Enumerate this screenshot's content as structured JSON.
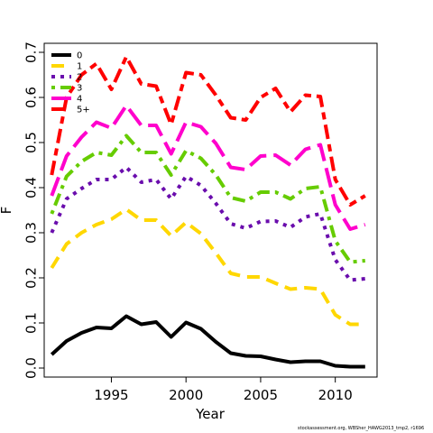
{
  "chart_data": {
    "type": "line",
    "title": "",
    "xlabel": "Year",
    "ylabel": "F",
    "xlim": [
      1990.5,
      2012.8
    ],
    "ylim": [
      -0.02,
      0.72
    ],
    "xticks": [
      1995,
      2000,
      2005,
      2010
    ],
    "yticks": [
      0.0,
      0.1,
      0.2,
      0.3,
      0.4,
      0.5,
      0.6,
      0.7
    ],
    "ytick_labels": [
      "0.0",
      "0.1",
      "0.2",
      "0.3",
      "0.4",
      "0.5",
      "0.6",
      "0.7"
    ],
    "grid": false,
    "legend_position": "top-left",
    "x": [
      1991,
      1992,
      1993,
      1994,
      1995,
      1996,
      1997,
      1998,
      1999,
      2000,
      2001,
      2002,
      2003,
      2004,
      2005,
      2006,
      2007,
      2008,
      2009,
      2010,
      2011,
      2012
    ],
    "series": [
      {
        "name": "0",
        "color": "#000000",
        "dash": "solid",
        "values": [
          0.03,
          0.06,
          0.078,
          0.09,
          0.088,
          0.115,
          0.097,
          0.102,
          0.069,
          0.101,
          0.087,
          0.058,
          0.033,
          0.027,
          0.026,
          0.019,
          0.013,
          0.015,
          0.015,
          0.005,
          0.003,
          0.003
        ]
      },
      {
        "name": "1",
        "color": "#FFD700",
        "dash": "dashed",
        "values": [
          0.222,
          0.275,
          0.3,
          0.318,
          0.33,
          0.352,
          0.328,
          0.328,
          0.293,
          0.323,
          0.298,
          0.255,
          0.21,
          0.202,
          0.202,
          0.188,
          0.175,
          0.178,
          0.175,
          0.118,
          0.097,
          0.097
        ]
      },
      {
        "name": "2",
        "color": "#6A0DAD",
        "dash": "dotted",
        "values": [
          0.3,
          0.375,
          0.398,
          0.418,
          0.418,
          0.445,
          0.412,
          0.418,
          0.375,
          0.425,
          0.405,
          0.365,
          0.32,
          0.31,
          0.325,
          0.326,
          0.312,
          0.335,
          0.342,
          0.24,
          0.195,
          0.198
        ]
      },
      {
        "name": "3",
        "color": "#66CC00",
        "dash": "dotdash",
        "values": [
          0.342,
          0.425,
          0.458,
          0.478,
          0.472,
          0.515,
          0.478,
          0.478,
          0.428,
          0.482,
          0.465,
          0.428,
          0.378,
          0.37,
          0.39,
          0.39,
          0.375,
          0.398,
          0.402,
          0.282,
          0.235,
          0.238
        ]
      },
      {
        "name": "4",
        "color": "#FF00CC",
        "dash": "longdash",
        "values": [
          0.382,
          0.47,
          0.512,
          0.545,
          0.532,
          0.582,
          0.538,
          0.538,
          0.475,
          0.545,
          0.535,
          0.498,
          0.445,
          0.44,
          0.47,
          0.472,
          0.45,
          0.485,
          0.495,
          0.362,
          0.308,
          0.318
        ]
      },
      {
        "name": "5+",
        "color": "#FF0000",
        "dash": "twodash",
        "values": [
          0.428,
          0.6,
          0.65,
          0.675,
          0.618,
          0.69,
          0.63,
          0.625,
          0.54,
          0.655,
          0.65,
          0.605,
          0.555,
          0.55,
          0.6,
          0.62,
          0.568,
          0.605,
          0.602,
          0.418,
          0.362,
          0.382
        ]
      }
    ]
  },
  "footer_text": "stockassessment.org, WBSher_HAWG2013_tmp2, r1696"
}
